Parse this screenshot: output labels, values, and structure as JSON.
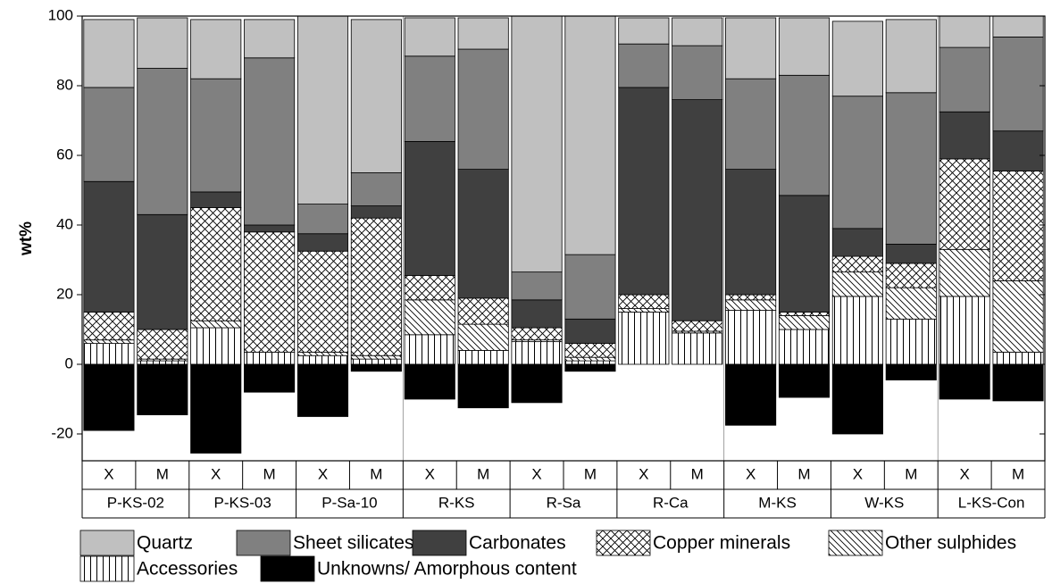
{
  "chart_data": {
    "type": "bar",
    "stacked": true,
    "y_label": "wt%",
    "groups": [
      "P-KS-02",
      "P-KS-03",
      "P-Sa-10",
      "R-KS",
      "R-Sa",
      "R-Ca",
      "M-KS",
      "W-KS",
      "L-KS-Con"
    ],
    "categories": [
      "X",
      "M",
      "X",
      "M",
      "X",
      "M",
      "X",
      "M",
      "X",
      "M",
      "X",
      "M",
      "X",
      "M",
      "X",
      "M",
      "X",
      "M"
    ],
    "ylim": [
      -27.7,
      100
    ],
    "yticks": [
      -20,
      0,
      20,
      40,
      60,
      80,
      100
    ],
    "series": [
      {
        "name": "Accessories",
        "color": "#ffffff",
        "pattern": "vertical",
        "values": [
          6,
          1,
          10.5,
          3.5,
          2.5,
          1.5,
          8.5,
          4,
          6.5,
          1,
          15,
          9,
          15.5,
          10,
          19.5,
          13,
          19.5,
          3.5
        ]
      },
      {
        "name": "Other sulphides",
        "color": "#ffffff",
        "pattern": "diagonal",
        "values": [
          1,
          0.5,
          2,
          0,
          1,
          1,
          10,
          7.5,
          0.5,
          1,
          1,
          0.5,
          3,
          4,
          7,
          9,
          13.5,
          20.5
        ]
      },
      {
        "name": "Copper minerals",
        "color": "#ffffff",
        "pattern": "crosshatch",
        "values": [
          8,
          8.5,
          32.5,
          34.5,
          29,
          39.5,
          7,
          7.5,
          3.5,
          4,
          4,
          3,
          1.5,
          1,
          4.5,
          7,
          26,
          31.5
        ]
      },
      {
        "name": "Carbonates",
        "color": "#404040",
        "values": [
          37.5,
          33,
          4.5,
          2,
          5,
          3.5,
          38.5,
          37,
          8,
          7,
          59.5,
          63.5,
          36,
          33.5,
          8,
          5.5,
          13.5,
          11.5
        ]
      },
      {
        "name": "Sheet silicates",
        "color": "#808080",
        "values": [
          27,
          42,
          32.5,
          48,
          8.5,
          9.5,
          24.5,
          34.5,
          8,
          18.5,
          12.5,
          15.5,
          26,
          34.5,
          38,
          43.5,
          18.5,
          27
        ]
      },
      {
        "name": "Quartz",
        "color": "#c0c0c0",
        "values": [
          19.5,
          14.5,
          17,
          11,
          54,
          44,
          11,
          9,
          73.5,
          68.5,
          7.5,
          8,
          17.5,
          16.5,
          21.5,
          21,
          9,
          6
        ]
      },
      {
        "name": "Unknowns/ Amorphous content",
        "color": "#000000",
        "values": [
          -19,
          -14.5,
          -25.5,
          -8,
          -15,
          -2,
          -10,
          -12.5,
          -11,
          -2,
          0,
          0,
          -17.5,
          -9.5,
          -20,
          -4.5,
          -10,
          -10.5
        ]
      }
    ]
  }
}
